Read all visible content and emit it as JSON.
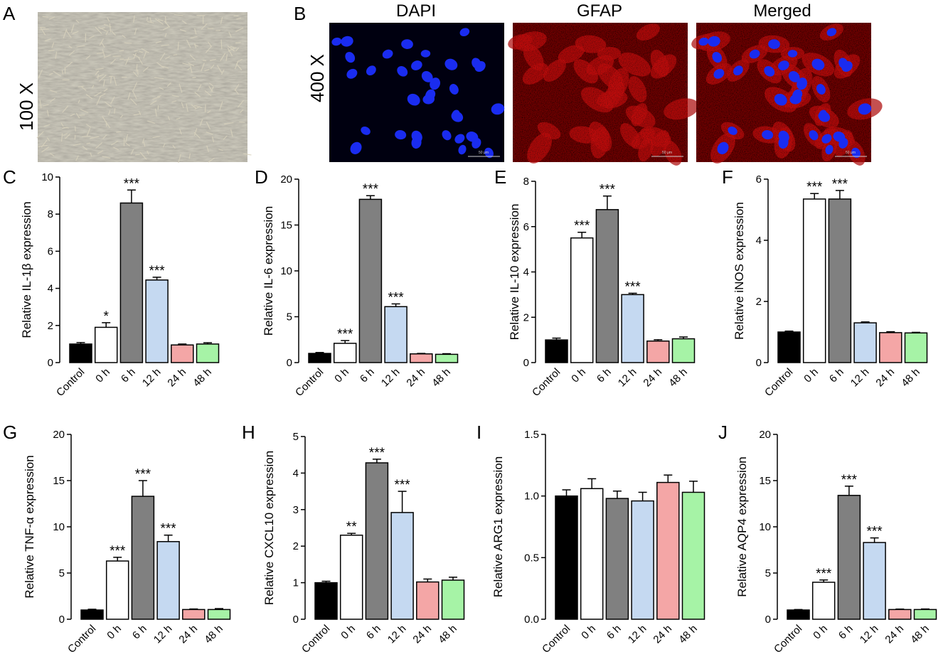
{
  "figure_top": {
    "panel_a": {
      "label": "A",
      "magnification": "100 X",
      "micrograph": "brightfield-astrocyte-culture"
    },
    "panel_b": {
      "label": "B",
      "magnification": "400 X",
      "images": [
        {
          "title": "DAPI",
          "stain": "nuclei-blue",
          "scale_bar": "50 μm"
        },
        {
          "title": "GFAP",
          "stain": "gfap-red",
          "scale_bar": "50 μm"
        },
        {
          "title": "Merged",
          "stain": "merged-red-blue",
          "scale_bar": "50 μm"
        }
      ]
    }
  },
  "chart_data": [
    {
      "panel": "C",
      "type": "bar",
      "categories": [
        "Control",
        "0 h",
        "6 h",
        "12 h",
        "24 h",
        "48 h"
      ],
      "ylabel": "Relative IL-1β expression",
      "ylim": [
        0,
        10
      ],
      "yticks": [
        "0",
        "2",
        "4",
        "6",
        "8",
        "10"
      ],
      "values": [
        1.0,
        1.9,
        8.6,
        4.45,
        0.95,
        1.0
      ],
      "errors": [
        0.08,
        0.25,
        0.7,
        0.15,
        0.05,
        0.07
      ],
      "annotations": [
        "",
        "*",
        "***",
        "***",
        "",
        ""
      ]
    },
    {
      "panel": "D",
      "type": "bar",
      "categories": [
        "Control",
        "0 h",
        "6 h",
        "12 h",
        "24 h",
        "48 h"
      ],
      "ylabel": "Relative IL-6 expression",
      "ylim": [
        0,
        20
      ],
      "yticks": [
        "0",
        "5",
        "10",
        "15",
        "20"
      ],
      "values": [
        1.0,
        2.1,
        17.8,
        6.1,
        0.95,
        0.9
      ],
      "errors": [
        0.1,
        0.3,
        0.4,
        0.3,
        0.05,
        0.07
      ],
      "annotations": [
        "",
        "***",
        "***",
        "***",
        "",
        ""
      ]
    },
    {
      "panel": "E",
      "type": "bar",
      "categories": [
        "Control",
        "0 h",
        "6 h",
        "12 h",
        "24 h",
        "48 h"
      ],
      "ylabel": "Relative IL-10 expression",
      "ylim": [
        0,
        8
      ],
      "yticks": [
        "0",
        "2",
        "4",
        "6",
        "8"
      ],
      "values": [
        1.0,
        5.5,
        6.75,
        3.0,
        0.95,
        1.05
      ],
      "errors": [
        0.08,
        0.25,
        0.6,
        0.06,
        0.06,
        0.08
      ],
      "annotations": [
        "",
        "***",
        "***",
        "***",
        "",
        ""
      ]
    },
    {
      "panel": "F",
      "type": "bar",
      "categories": [
        "Control",
        "0 h",
        "6 h",
        "12 h",
        "24 h",
        "48 h"
      ],
      "ylabel": "Relative iNOS expression",
      "ylim": [
        0,
        6
      ],
      "yticks": [
        "0",
        "2",
        "4",
        "6"
      ],
      "values": [
        1.0,
        5.35,
        5.35,
        1.3,
        0.98,
        0.97
      ],
      "errors": [
        0.03,
        0.18,
        0.28,
        0.03,
        0.03,
        0.02
      ],
      "annotations": [
        "",
        "***",
        "***",
        "",
        "",
        ""
      ]
    },
    {
      "panel": "G",
      "type": "bar",
      "categories": [
        "Control",
        "0 h",
        "6 h",
        "12 h",
        "24 h",
        "48 h"
      ],
      "ylabel": "Relative TNF-α expression",
      "ylim": [
        0,
        20
      ],
      "yticks": [
        "0",
        "5",
        "10",
        "15",
        "20"
      ],
      "values": [
        1.0,
        6.3,
        13.3,
        8.4,
        1.05,
        1.05
      ],
      "errors": [
        0.08,
        0.4,
        1.7,
        0.7,
        0.06,
        0.1
      ],
      "annotations": [
        "",
        "***",
        "***",
        "***",
        "",
        ""
      ]
    },
    {
      "panel": "H",
      "type": "bar",
      "categories": [
        "Control",
        "0 h",
        "6 h",
        "12 h",
        "24 h",
        "48 h"
      ],
      "ylabel": "Relative CXCL10 expression",
      "ylim": [
        0,
        5
      ],
      "yticks": [
        "0",
        "1",
        "2",
        "3",
        "4",
        "5"
      ],
      "values": [
        1.0,
        2.3,
        4.28,
        2.92,
        1.02,
        1.07
      ],
      "errors": [
        0.04,
        0.05,
        0.1,
        0.58,
        0.08,
        0.08
      ],
      "annotations": [
        "",
        "**",
        "***",
        "***",
        "",
        ""
      ]
    },
    {
      "panel": "I",
      "type": "bar",
      "categories": [
        "Control",
        "0 h",
        "6 h",
        "12 h",
        "24 h",
        "48 h"
      ],
      "ylabel": "Relative ARG1 expression",
      "ylim": [
        0,
        1.5
      ],
      "yticks": [
        "0.0",
        "0.5",
        "1.0",
        "1.5"
      ],
      "values": [
        1.0,
        1.06,
        0.98,
        0.96,
        1.11,
        1.03
      ],
      "errors": [
        0.05,
        0.08,
        0.06,
        0.07,
        0.06,
        0.09
      ],
      "annotations": [
        "",
        "",
        "",
        "",
        "",
        ""
      ]
    },
    {
      "panel": "J",
      "type": "bar",
      "categories": [
        "Control",
        "0 h",
        "6 h",
        "12 h",
        "24 h",
        "48 h"
      ],
      "ylabel": "Relative AQP4 expression",
      "ylim": [
        0,
        20
      ],
      "yticks": [
        "0",
        "5",
        "10",
        "15",
        "20"
      ],
      "values": [
        1.0,
        4.0,
        13.4,
        8.3,
        1.05,
        1.05
      ],
      "errors": [
        0.05,
        0.25,
        1.0,
        0.5,
        0.05,
        0.06
      ],
      "annotations": [
        "",
        "***",
        "***",
        "***",
        "",
        ""
      ]
    }
  ],
  "colors": {
    "Control": "#000000",
    "0 h": "#ffffff",
    "6 h": "#808080",
    "12 h": "#c5d9f1",
    "24 h": "#f4a6a6",
    "48 h": "#a6f3a6"
  }
}
